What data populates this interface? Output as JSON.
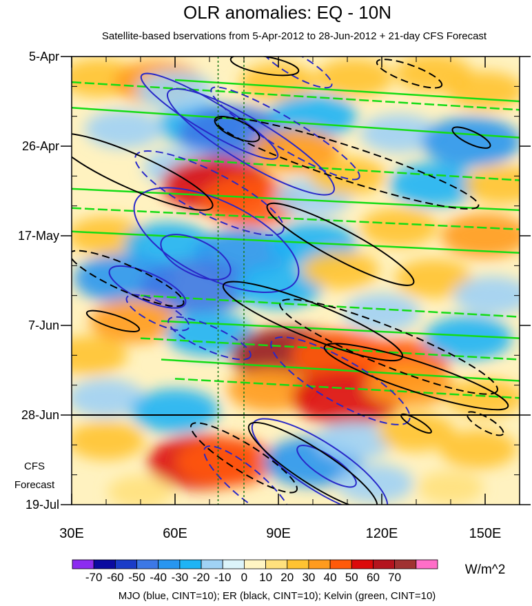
{
  "chart_data": {
    "type": "heatmap",
    "title": "OLR anomalies: EQ - 10N",
    "subtitle": "Satellite-based bservations from 5-Apr-2012 to 28-Jun-2012 + 21-day CFS Forecast",
    "x_ticks": [
      {
        "value": 30,
        "label": "30E"
      },
      {
        "value": 60,
        "label": "60E"
      },
      {
        "value": 90,
        "label": "90E"
      },
      {
        "value": 120,
        "label": "120E"
      },
      {
        "value": 150,
        "label": "150E"
      }
    ],
    "xlim": [
      30,
      160
    ],
    "y_ticks": [
      {
        "day": 0,
        "label": "5-Apr"
      },
      {
        "day": 21,
        "label": "26-Apr"
      },
      {
        "day": 42,
        "label": "17-May"
      },
      {
        "day": 63,
        "label": "7-Jun"
      },
      {
        "day": 84,
        "label": "28-Jun"
      },
      {
        "day": 105,
        "label": "19-Jul"
      }
    ],
    "ylim_days": [
      0,
      105
    ],
    "observation_end_day": 84,
    "forecast_label_lines": [
      "CFS",
      "Forecast"
    ],
    "reference_longitudes": [
      72.5,
      80
    ],
    "colorbar": {
      "units": "W/m^2",
      "levels": [
        -70,
        -60,
        -50,
        -40,
        -30,
        -20,
        -10,
        0,
        10,
        20,
        30,
        40,
        50,
        60,
        70
      ],
      "level_labels": [
        "-70",
        "-60",
        "-50",
        "-40",
        "-30",
        "-20",
        "-10",
        "0",
        "10",
        "20",
        "30",
        "40",
        "50",
        "60",
        "70"
      ],
      "colors": [
        "#8c2cf0",
        "#0a0aa0",
        "#1a3cc8",
        "#3c78e6",
        "#2896f0",
        "#1eb4f5",
        "#a0d2f5",
        "#dcf4fa",
        "#fff5c3",
        "#ffe17d",
        "#ffc332",
        "#ff9b1e",
        "#ff5a0a",
        "#dc0a0a",
        "#b4141e",
        "#a03232",
        "#ff6ec8"
      ]
    },
    "anomaly_features": [
      {
        "lon": 38,
        "day": 5,
        "value": 20
      },
      {
        "lon": 55,
        "day": 6,
        "value": 30
      },
      {
        "lon": 90,
        "day": 6,
        "value": 20
      },
      {
        "lon": 112,
        "day": 5,
        "value": 20
      },
      {
        "lon": 135,
        "day": 4,
        "value": 20
      },
      {
        "lon": 150,
        "day": 8,
        "value": 20
      },
      {
        "lon": 68,
        "day": 16,
        "value": -30
      },
      {
        "lon": 77,
        "day": 18,
        "value": -50
      },
      {
        "lon": 45,
        "day": 17,
        "value": -20
      },
      {
        "lon": 100,
        "day": 14,
        "value": -30
      },
      {
        "lon": 125,
        "day": 18,
        "value": -20
      },
      {
        "lon": 146,
        "day": 20,
        "value": -40
      },
      {
        "lon": 62,
        "day": 26,
        "value": -20
      },
      {
        "lon": 72,
        "day": 30,
        "value": 50
      },
      {
        "lon": 82,
        "day": 34,
        "value": 40
      },
      {
        "lon": 100,
        "day": 33,
        "value": -20
      },
      {
        "lon": 135,
        "day": 30,
        "value": -30
      },
      {
        "lon": 110,
        "day": 28,
        "value": 20
      },
      {
        "lon": 40,
        "day": 42,
        "value": 20
      },
      {
        "lon": 58,
        "day": 44,
        "value": -30
      },
      {
        "lon": 80,
        "day": 46,
        "value": -40
      },
      {
        "lon": 100,
        "day": 44,
        "value": -30
      },
      {
        "lon": 125,
        "day": 40,
        "value": 20
      },
      {
        "lon": 150,
        "day": 42,
        "value": 30
      },
      {
        "lon": 45,
        "day": 52,
        "value": -40
      },
      {
        "lon": 66,
        "day": 54,
        "value": -50
      },
      {
        "lon": 90,
        "day": 54,
        "value": -30
      },
      {
        "lon": 108,
        "day": 50,
        "value": 20
      },
      {
        "lon": 135,
        "day": 52,
        "value": 20
      },
      {
        "lon": 152,
        "day": 56,
        "value": -20
      },
      {
        "lon": 48,
        "day": 62,
        "value": 30
      },
      {
        "lon": 70,
        "day": 65,
        "value": -30
      },
      {
        "lon": 95,
        "day": 70,
        "value": 60
      },
      {
        "lon": 92,
        "day": 70,
        "value": 70
      },
      {
        "lon": 108,
        "day": 70,
        "value": 40
      },
      {
        "lon": 125,
        "day": 72,
        "value": 40
      },
      {
        "lon": 145,
        "day": 66,
        "value": -30
      },
      {
        "lon": 88,
        "day": 78,
        "value": 30
      },
      {
        "lon": 110,
        "day": 80,
        "value": 50
      },
      {
        "lon": 128,
        "day": 77,
        "value": 30
      },
      {
        "lon": 150,
        "day": 80,
        "value": 20
      },
      {
        "lon": 40,
        "day": 80,
        "value": -20
      },
      {
        "lon": 60,
        "day": 83,
        "value": -30
      },
      {
        "lon": 40,
        "day": 90,
        "value": 20
      },
      {
        "lon": 68,
        "day": 95,
        "value": 50
      },
      {
        "lon": 75,
        "day": 95,
        "value": 40
      },
      {
        "lon": 100,
        "day": 95,
        "value": -40
      },
      {
        "lon": 112,
        "day": 90,
        "value": -20
      },
      {
        "lon": 130,
        "day": 88,
        "value": 20
      },
      {
        "lon": 148,
        "day": 92,
        "value": 20
      },
      {
        "lon": 118,
        "day": 100,
        "value": -20
      },
      {
        "lon": 50,
        "day": 102,
        "value": 10
      },
      {
        "lon": 140,
        "day": 101,
        "value": 10
      },
      {
        "lon": 95,
        "day": 22,
        "value": 30
      },
      {
        "lon": 60,
        "day": 8,
        "value": -20
      },
      {
        "lon": 120,
        "day": 60,
        "value": -20
      },
      {
        "lon": 35,
        "day": 70,
        "value": 20
      },
      {
        "lon": 155,
        "day": 30,
        "value": 20
      }
    ],
    "series": [
      {
        "name": "MJO",
        "color": "#2828c8",
        "cint": 10,
        "contours": [
          {
            "lon": 70,
            "day": 14,
            "a_lon": 23,
            "a_day": 3.5,
            "angle": 31,
            "dashed": false
          },
          {
            "lon": 82,
            "day": 20,
            "a_lon": 28,
            "a_day": 5,
            "angle": 31,
            "dashed": false
          },
          {
            "lon": 72,
            "day": 43,
            "a_lon": 26,
            "a_day": 9,
            "angle": 26,
            "dashed": false
          },
          {
            "lon": 66,
            "day": 47,
            "a_lon": 11,
            "a_day": 4,
            "angle": 26,
            "dashed": false
          },
          {
            "lon": 52,
            "day": 54,
            "a_lon": 12,
            "a_day": 3.2,
            "angle": 24,
            "dashed": false
          },
          {
            "lon": 102,
            "day": 96,
            "a_lon": 23,
            "a_day": 5.5,
            "angle": 33,
            "dashed": false
          },
          {
            "lon": 104,
            "day": 96,
            "a_lon": 10,
            "a_day": 2.5,
            "angle": 33,
            "dashed": false
          },
          {
            "lon": 70,
            "day": 32,
            "a_lon": 24,
            "a_day": 5,
            "angle": 27,
            "dashed": true
          },
          {
            "lon": 92,
            "day": 18,
            "a_lon": 25,
            "a_day": 3.5,
            "angle": 31,
            "dashed": true
          },
          {
            "lon": 70,
            "day": 66,
            "a_lon": 13,
            "a_day": 2.8,
            "angle": 24,
            "dashed": true
          },
          {
            "lon": 108,
            "day": 76,
            "a_lon": 23,
            "a_day": 5,
            "angle": 30,
            "dashed": true
          },
          {
            "lon": 81,
            "day": 100,
            "a_lon": 16,
            "a_day": 3.5,
            "angle": 40,
            "dashed": true
          },
          {
            "lon": 95,
            "day": 2,
            "a_lon": 12,
            "a_day": 2.5,
            "angle": 30,
            "dashed": true
          },
          {
            "lon": 55,
            "day": 60,
            "a_lon": 10,
            "a_day": 2.5,
            "angle": 26,
            "dashed": true
          }
        ]
      },
      {
        "name": "ER",
        "color": "#000000",
        "cint": 10,
        "contours": [
          {
            "lon": 48,
            "day": 27,
            "a_lon": 25,
            "a_day": 4,
            "angle": 24,
            "dashed": false
          },
          {
            "lon": 78,
            "day": 17,
            "a_lon": 7,
            "a_day": 2,
            "angle": 24,
            "dashed": false
          },
          {
            "lon": 86,
            "day": 2,
            "a_lon": 10,
            "a_day": 2,
            "angle": 10,
            "dashed": false
          },
          {
            "lon": 108,
            "day": 44,
            "a_lon": 24,
            "a_day": 3.5,
            "angle": 28,
            "dashed": false
          },
          {
            "lon": 100,
            "day": 62,
            "a_lon": 28,
            "a_day": 4,
            "angle": 22,
            "dashed": false
          },
          {
            "lon": 130,
            "day": 75,
            "a_lon": 28,
            "a_day": 3.5,
            "angle": 18,
            "dashed": false
          },
          {
            "lon": 100,
            "day": 96,
            "a_lon": 22,
            "a_day": 4,
            "angle": 33,
            "dashed": false
          },
          {
            "lon": 42,
            "day": 62,
            "a_lon": 8,
            "a_day": 1.5,
            "angle": 18,
            "dashed": false
          },
          {
            "lon": 146,
            "day": 19,
            "a_lon": 6,
            "a_day": 1.5,
            "angle": 25,
            "dashed": false
          },
          {
            "lon": 130,
            "day": 86,
            "a_lon": 5,
            "a_day": 1,
            "angle": 30,
            "dashed": false
          },
          {
            "lon": 110,
            "day": 25,
            "a_lon": 40,
            "a_day": 4,
            "angle": 18,
            "dashed": true
          },
          {
            "lon": 46,
            "day": 52,
            "a_lon": 18,
            "a_day": 3,
            "angle": 24,
            "dashed": true
          },
          {
            "lon": 122,
            "day": 68,
            "a_lon": 34,
            "a_day": 4.5,
            "angle": 22,
            "dashed": true
          },
          {
            "lon": 80,
            "day": 94,
            "a_lon": 18,
            "a_day": 3.2,
            "angle": 32,
            "dashed": true
          },
          {
            "lon": 128,
            "day": 4,
            "a_lon": 10,
            "a_day": 2,
            "angle": 20,
            "dashed": true
          },
          {
            "lon": 150,
            "day": 86,
            "a_lon": 6,
            "a_day": 1.5,
            "angle": 30,
            "dashed": true
          }
        ]
      },
      {
        "name": "Kelvin",
        "color": "#14dc14",
        "cint": 10,
        "bands": [
          {
            "lon_start": 30,
            "day_start": 6,
            "lon_end": 160,
            "day_end": 12.5,
            "dashed": true
          },
          {
            "lon_start": 30,
            "day_start": 12,
            "lon_end": 160,
            "day_end": 19,
            "dashed": false
          },
          {
            "lon_start": 60,
            "day_start": 5.5,
            "lon_end": 160,
            "day_end": 10.5,
            "dashed": false
          },
          {
            "lon_start": 60,
            "day_start": 24,
            "lon_end": 160,
            "day_end": 29,
            "dashed": true
          },
          {
            "lon_start": 30,
            "day_start": 31,
            "lon_end": 160,
            "day_end": 36,
            "dashed": false
          },
          {
            "lon_start": 30,
            "day_start": 35.5,
            "lon_end": 160,
            "day_end": 40.5,
            "dashed": true
          },
          {
            "lon_start": 30,
            "day_start": 41,
            "lon_end": 160,
            "day_end": 46,
            "dashed": false
          },
          {
            "lon_start": 50,
            "day_start": 56,
            "lon_end": 160,
            "day_end": 61,
            "dashed": true
          },
          {
            "lon_start": 56,
            "day_start": 62,
            "lon_end": 160,
            "day_end": 66,
            "dashed": false
          },
          {
            "lon_start": 50,
            "day_start": 66,
            "lon_end": 160,
            "day_end": 71,
            "dashed": true
          },
          {
            "lon_start": 56,
            "day_start": 71,
            "lon_end": 160,
            "day_end": 76,
            "dashed": false
          },
          {
            "lon_start": 60,
            "day_start": 75.5,
            "lon_end": 160,
            "day_end": 80,
            "dashed": true
          }
        ]
      }
    ],
    "footer": "MJO (blue, CINT=10); ER (black, CINT=10); Kelvin (green, CINT=10)"
  }
}
